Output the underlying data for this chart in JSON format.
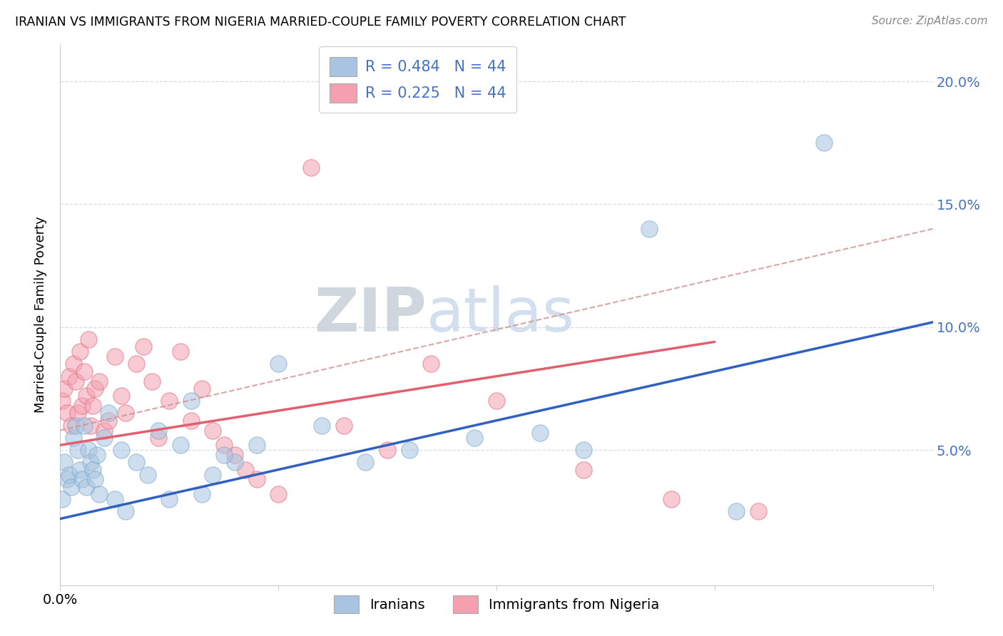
{
  "title": "IRANIAN VS IMMIGRANTS FROM NIGERIA MARRIED-COUPLE FAMILY POVERTY CORRELATION CHART",
  "source": "Source: ZipAtlas.com",
  "ylabel": "Married-Couple Family Poverty",
  "ytick_labels": [
    "5.0%",
    "10.0%",
    "15.0%",
    "20.0%"
  ],
  "ytick_values": [
    0.05,
    0.1,
    0.15,
    0.2
  ],
  "xlim": [
    0.0,
    0.4
  ],
  "ylim": [
    -0.005,
    0.215
  ],
  "legend_r1": "R = 0.484",
  "legend_n1": "N = 44",
  "legend_r2": "R = 0.225",
  "legend_n2": "N = 44",
  "legend_label1": "Iranians",
  "legend_label2": "Immigrants from Nigeria",
  "iranians_color": "#a8c4e0",
  "iranians_edge": "#7aaaca",
  "nigeria_color": "#f4a0b0",
  "nigeria_edge": "#e07080",
  "trendline_blue_color": "#3060c0",
  "trendline_pink_color": "#e06070",
  "trendline_dashed_color": "#d09090",
  "watermark": "ZIPatlas",
  "watermark_color": "#ccdaeb",
  "grid_color": "#d5dde5",
  "axis_color": "#cccccc",
  "right_tick_color": "#4472c4",
  "iranians_x": [
    0.001,
    0.002,
    0.003,
    0.004,
    0.005,
    0.006,
    0.007,
    0.008,
    0.009,
    0.01,
    0.011,
    0.012,
    0.013,
    0.014,
    0.015,
    0.016,
    0.017,
    0.018,
    0.02,
    0.022,
    0.025,
    0.028,
    0.03,
    0.035,
    0.04,
    0.045,
    0.05,
    0.06,
    0.07,
    0.08,
    0.09,
    0.1,
    0.12,
    0.14,
    0.16,
    0.19,
    0.22,
    0.27,
    0.31,
    0.35,
    0.24,
    0.055,
    0.065,
    0.075
  ],
  "iranians_y": [
    0.03,
    0.045,
    0.038,
    0.04,
    0.035,
    0.055,
    0.06,
    0.05,
    0.042,
    0.038,
    0.06,
    0.035,
    0.05,
    0.045,
    0.042,
    0.038,
    0.048,
    0.032,
    0.055,
    0.065,
    0.03,
    0.05,
    0.025,
    0.045,
    0.04,
    0.058,
    0.03,
    0.07,
    0.04,
    0.045,
    0.052,
    0.085,
    0.06,
    0.045,
    0.05,
    0.055,
    0.057,
    0.14,
    0.025,
    0.175,
    0.05,
    0.052,
    0.032,
    0.048
  ],
  "nigeria_x": [
    0.001,
    0.002,
    0.003,
    0.004,
    0.005,
    0.006,
    0.007,
    0.008,
    0.009,
    0.01,
    0.011,
    0.012,
    0.013,
    0.014,
    0.015,
    0.016,
    0.018,
    0.02,
    0.022,
    0.025,
    0.028,
    0.03,
    0.035,
    0.038,
    0.042,
    0.05,
    0.055,
    0.06,
    0.07,
    0.08,
    0.09,
    0.1,
    0.115,
    0.13,
    0.15,
    0.17,
    0.2,
    0.24,
    0.28,
    0.32,
    0.045,
    0.065,
    0.075,
    0.085
  ],
  "nigeria_y": [
    0.07,
    0.075,
    0.065,
    0.08,
    0.06,
    0.085,
    0.078,
    0.065,
    0.09,
    0.068,
    0.082,
    0.072,
    0.095,
    0.06,
    0.068,
    0.075,
    0.078,
    0.058,
    0.062,
    0.088,
    0.072,
    0.065,
    0.085,
    0.092,
    0.078,
    0.07,
    0.09,
    0.062,
    0.058,
    0.048,
    0.038,
    0.032,
    0.165,
    0.06,
    0.05,
    0.085,
    0.07,
    0.042,
    0.03,
    0.025,
    0.055,
    0.075,
    0.052,
    0.042
  ],
  "trendline_blue_x0": 0.0,
  "trendline_blue_y0": 0.022,
  "trendline_blue_x1": 0.4,
  "trendline_blue_y1": 0.102,
  "trendline_pink_x0": 0.0,
  "trendline_pink_y0": 0.052,
  "trendline_pink_x1": 0.3,
  "trendline_pink_y1": 0.094,
  "trendline_dashed_x0": 0.0,
  "trendline_dashed_y0": 0.058,
  "trendline_dashed_x1": 0.4,
  "trendline_dashed_y1": 0.14
}
